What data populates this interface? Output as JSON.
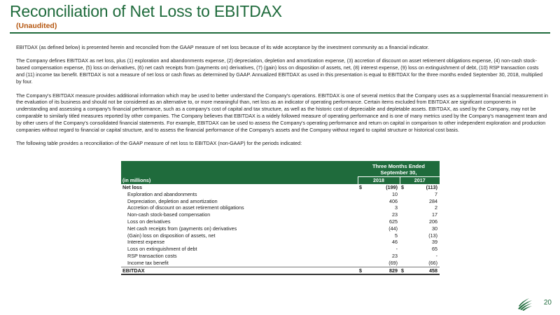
{
  "header": {
    "title": "Reconciliation of Net Loss to EBITDAX",
    "subtitle": "(Unaudited)"
  },
  "body": {
    "p1": "EBITDAX (as defined below) is presented herein and reconciled from the GAAP measure of net loss because of its wide acceptance by the investment community as a financial indicator.",
    "p2": "The Company defines EBITDAX as net loss, plus (1) exploration and abandonments expense, (2) depreciation, depletion and amortization expense, (3) accretion of discount on asset retirement obligations expense, (4) non-cash stock-based compensation expense, (5) loss on derivatives, (6) net cash receipts from (payments on) derivatives, (7) (gain) loss on disposition of assets, net, (8) interest expense, (9) loss on extinguishment of debt, (10) RSP transaction costs and (11) income tax benefit. EBITDAX is not a measure of net loss or cash flows as determined by GAAP. Annualized EBITDAX as used in this presentation is equal to EBITDAX for the three months ended September 30, 2018, multiplied by four.",
    "p3": "The Company's EBITDAX measure provides additional information which may be used to better understand the Company's operations. EBITDAX is one of several metrics that the Company uses as a supplemental financial measurement in the evaluation of its business and should not be considered as an alternative to, or more meaningful than, net loss as an indicator of operating performance. Certain items excluded from EBITDAX are significant components in understanding and assessing a company's financial performance, such as a company's cost of capital and tax structure, as well as the historic cost of depreciable and depletable assets. EBITDAX, as used by the Company, may not be comparable to similarly titled measures reported by other companies. The Company believes that EBITDAX is a widely followed measure of operating performance and is one of many metrics used by the Company's management team and by other users of the Company's consolidated financial statements. For example, EBITDAX can be used to assess the Company's operating performance and return on capital in comparison to other independent exploration and production companies without regard to financial or capital structure, and to assess the financial performance of the Company's assets and the Company without regard to capital structure or historical cost basis.",
    "p4": "The following table provides a reconciliation of the GAAP measure of net loss to EBITDAX (non-GAAP) for the periods indicated:"
  },
  "table": {
    "period_header": "Three Months Ended",
    "period_header2": "September 30,",
    "unit_label": "(in millions)",
    "col1": "2018",
    "col2": "2017",
    "currency": "$",
    "net_loss": {
      "label": "Net loss",
      "v2018": "(199)",
      "v2017": "(113)"
    },
    "rows": [
      {
        "label": "Exploration and abandonments",
        "v2018": "10",
        "v2017": "7"
      },
      {
        "label": "Depreciation, depletion and amortization",
        "v2018": "406",
        "v2017": "284"
      },
      {
        "label": "Accretion of discount on asset retirement obligations",
        "v2018": "3",
        "v2017": "2"
      },
      {
        "label": "Non-cash stock-based compensation",
        "v2018": "23",
        "v2017": "17"
      },
      {
        "label": "Loss on derivatives",
        "v2018": "625",
        "v2017": "206"
      },
      {
        "label": "Net cash receipts from (payments on) derivatives",
        "v2018": "(44)",
        "v2017": "30"
      },
      {
        "label": "(Gain) loss on disposition of assets, net",
        "v2018": "5",
        "v2017": "(13)"
      },
      {
        "label": "Interest expense",
        "v2018": "46",
        "v2017": "39"
      },
      {
        "label": "Loss on extinguishment of debt",
        "v2018": "-",
        "v2017": "65"
      },
      {
        "label": "RSP transaction costs",
        "v2018": "23",
        "v2017": "-"
      },
      {
        "label": "Income tax benefit",
        "v2018": "(69)",
        "v2017": "(66)"
      }
    ],
    "ebitdax": {
      "label": "EBITDAX",
      "v2018": "829",
      "v2017": "458"
    }
  },
  "footer": {
    "page_number": "20",
    "logo_icon": "company-logo-icon"
  },
  "colors": {
    "brand_green": "#1f6b3c",
    "subtitle_orange": "#b5560f"
  }
}
